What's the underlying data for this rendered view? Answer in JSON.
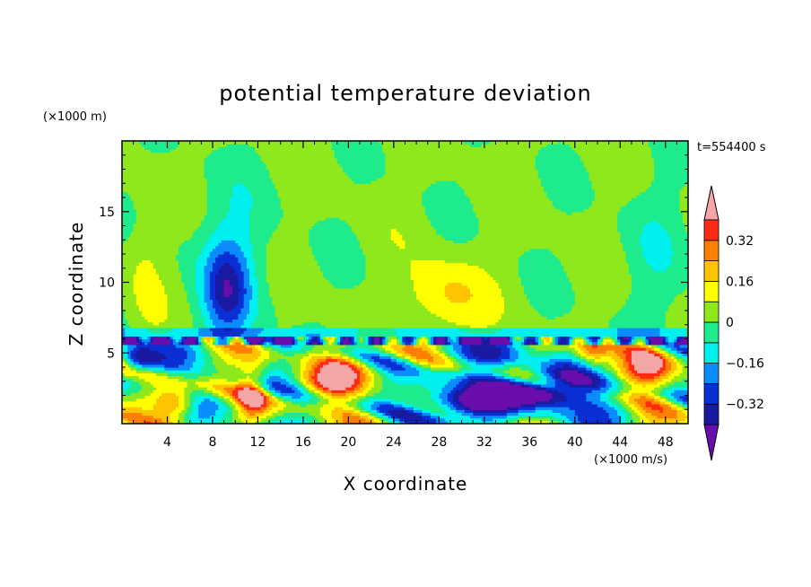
{
  "chart_data": {
    "type": "heatmap",
    "title": "potential temperature deviation",
    "xlabel": "X coordinate",
    "ylabel": "Z coordinate",
    "x_unit": "(×1000 m/s)",
    "y_unit": "(×1000 m)",
    "time_label": "t=554400 s",
    "xlim": [
      0,
      50
    ],
    "ylim": [
      0,
      20
    ],
    "x_ticks": [
      4,
      8,
      12,
      16,
      20,
      24,
      28,
      32,
      36,
      40,
      44,
      48
    ],
    "y_ticks": [
      5,
      10,
      15
    ],
    "colorbar": {
      "levels": [
        -0.4,
        -0.32,
        -0.24,
        -0.16,
        -0.08,
        0,
        0.08,
        0.16,
        0.24,
        0.32,
        0.4
      ],
      "colors": [
        "#6a0dad",
        "#1a1aa0",
        "#0a2fd4",
        "#0a8cff",
        "#00f0f0",
        "#1eeb8c",
        "#8ee81c",
        "#ffff00",
        "#ffc400",
        "#ff7f00",
        "#ff2a14",
        "#f4a7a7"
      ],
      "labels": [
        "0.32",
        "0.16",
        "0",
        "−0.16",
        "−0.32"
      ],
      "label_values": [
        0.32,
        0.16,
        0,
        -0.16,
        -0.32
      ]
    }
  }
}
